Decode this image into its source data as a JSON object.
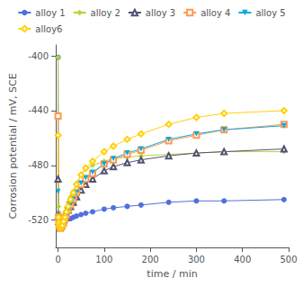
{
  "chart_data": {
    "type": "line",
    "xlabel": "time / min",
    "ylabel": "Corrosion potential / mV, SCE",
    "xlim": [
      -5,
      500
    ],
    "ylim": [
      -540,
      -392
    ],
    "xticks": [
      0,
      100,
      200,
      300,
      400,
      500
    ],
    "yticks": [
      -520,
      -480,
      -440,
      -400
    ],
    "grid": false,
    "legend": "top",
    "x": [
      0,
      1,
      2,
      3,
      4,
      5,
      7,
      9,
      12,
      15,
      18,
      22,
      27,
      33,
      40,
      50,
      60,
      75,
      100,
      120,
      150,
      180,
      240,
      300,
      360,
      490
    ],
    "series": [
      {
        "name": "alloy 1",
        "marker": "circle",
        "values": [
          -401,
          -515,
          -520,
          -522,
          -523,
          -523,
          -522,
          -521,
          -521,
          -520,
          -520,
          -519,
          -519,
          -518,
          -517,
          -516,
          -515,
          -514,
          -512,
          -511,
          -510,
          -509,
          -507,
          -506,
          -506,
          -505
        ]
      },
      {
        "name": "alloy 2",
        "marker": "diamond",
        "values": [
          -401,
          -510,
          -515,
          -518,
          -520,
          -521,
          -520,
          -519,
          -517,
          -514,
          -511,
          -507,
          -503,
          -499,
          -493,
          -487,
          -483,
          -480,
          -477,
          -475,
          -474,
          -473,
          -472,
          -471,
          -470,
          -470
        ]
      },
      {
        "name": "alloy 3",
        "marker": "triangle-open",
        "values": [
          -490,
          -517,
          -521,
          -523,
          -524,
          -524,
          -523,
          -522,
          -520,
          -518,
          -516,
          -513,
          -510,
          -507,
          -503,
          -498,
          -494,
          -490,
          -484,
          -481,
          -478,
          -476,
          -473,
          -471,
          -470,
          -468
        ]
      },
      {
        "name": "alloy 4",
        "marker": "square-open",
        "values": [
          -444,
          -518,
          -522,
          -524,
          -525,
          -526,
          -525,
          -524,
          -522,
          -519,
          -516,
          -513,
          -509,
          -505,
          -500,
          -494,
          -490,
          -486,
          -479,
          -476,
          -472,
          -469,
          -462,
          -458,
          -454,
          -450
        ]
      },
      {
        "name": "alloy 5",
        "marker": "triangle-down",
        "values": [
          -499,
          -520,
          -523,
          -525,
          -526,
          -527,
          -526,
          -525,
          -523,
          -520,
          -517,
          -513,
          -509,
          -505,
          -500,
          -493,
          -489,
          -485,
          -479,
          -475,
          -471,
          -468,
          -461,
          -457,
          -454,
          -451
        ]
      },
      {
        "name": "alloy6",
        "marker": "diamond-open",
        "values": [
          -458,
          -518,
          -522,
          -524,
          -525,
          -526,
          -525,
          -524,
          -521,
          -518,
          -514,
          -510,
          -505,
          -500,
          -494,
          -487,
          -482,
          -477,
          -470,
          -466,
          -461,
          -457,
          -450,
          -445,
          -442,
          -440
        ]
      }
    ]
  }
}
